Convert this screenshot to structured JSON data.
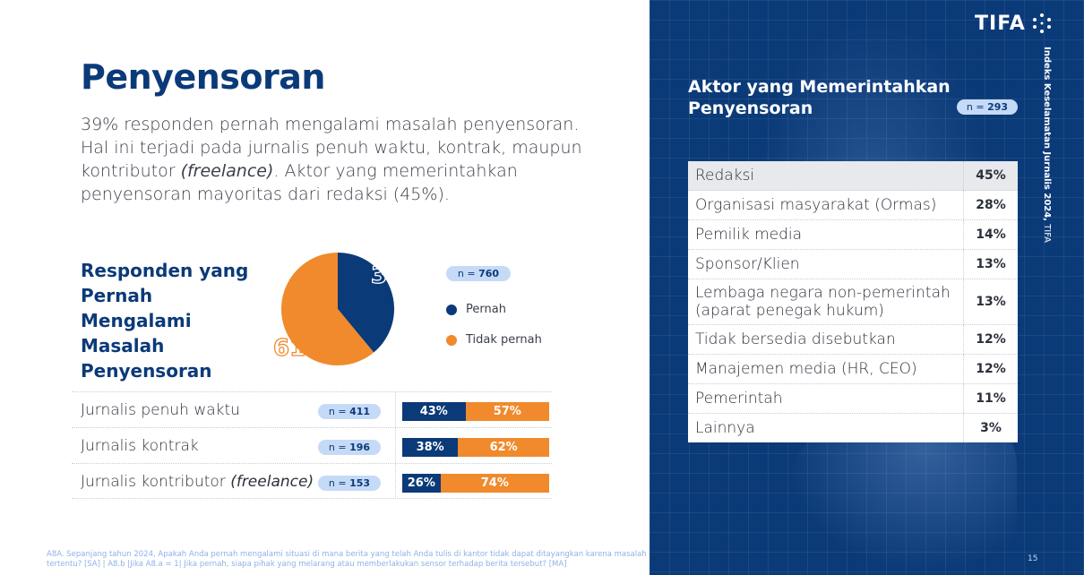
{
  "title": "Penyensoran",
  "lead": {
    "before": "39% responden pernah mengalami masalah penyensoran. Hal ini terjadi pada jurnalis penuh waktu, kontrak, maupun kontributor ",
    "italic": "(freelance)",
    "after": ". Aktor yang memerintahkan penyensoran mayoritas dari redaksi (45%)."
  },
  "pie_section": {
    "title": "Responden yang Pernah Mengalami Masalah Penyensoran",
    "n_prefix": "n = ",
    "n_value": "760"
  },
  "footnote": "A8A. Sepanjang tahun 2024, Apakah Anda pernah mengalami situasi di mana berita yang telah Anda tulis di kantor tidak dapat ditayangkan karena masalah sensor atau larangan tertentu? [SA] | A8.b |Jika A8.a = 1| Jika pernah, siapa pihak yang melarang atau memberlakukan sensor terhadap berita tersebut? [MA]",
  "brand": {
    "logo": "TIFA",
    "vertical_bold": "Indeks Keselamatan Jurnalis 2024,",
    "vertical_rest": " TIFA",
    "page_number": "15"
  },
  "actor_section": {
    "title": "Aktor yang Memerintahkan Penyensoran",
    "n_prefix": "n = ",
    "n_value": "293"
  },
  "colors": {
    "primary": "#0b3a78",
    "accent": "#f08a2c",
    "badge": "#c5daf6"
  },
  "chart_data": [
    {
      "type": "pie",
      "title": "Responden yang Pernah Mengalami Masalah Penyensoran",
      "slices": [
        {
          "name": "Pernah",
          "value": 39,
          "label": "39%",
          "color": "#0b3a78"
        },
        {
          "name": "Tidak pernah",
          "value": 61,
          "label": "61%",
          "color": "#f08a2c"
        }
      ],
      "legend_placement": "right"
    },
    {
      "type": "bar",
      "stacked": true,
      "orientation": "horizontal",
      "categories": [
        "Jurnalis penuh waktu",
        "Jurnalis kontrak",
        "Jurnalis kontributor"
      ],
      "category_italic_suffix": [
        "",
        "",
        "(freelance)"
      ],
      "n": [
        "411",
        "196",
        "153"
      ],
      "series": [
        {
          "name": "Pernah",
          "values": [
            43,
            38,
            26
          ],
          "labels": [
            "43%",
            "38%",
            "26%"
          ],
          "color": "#0b3a78"
        },
        {
          "name": "Tidak pernah",
          "values": [
            57,
            62,
            74
          ],
          "labels": [
            "57%",
            "62%",
            "74%"
          ],
          "color": "#f08a2c"
        }
      ]
    },
    {
      "type": "table",
      "title": "Aktor yang Memerintahkan Penyensoran",
      "rows": [
        {
          "name": "Redaksi",
          "value": "45%"
        },
        {
          "name": "Organisasi masyarakat (Ormas)",
          "value": "28%"
        },
        {
          "name": "Pemilik media",
          "value": "14%"
        },
        {
          "name": "Sponsor/Klien",
          "value": "13%"
        },
        {
          "name": "Lembaga negara non-pemerintah (aparat penegak hukum)",
          "value": "13%"
        },
        {
          "name": "Tidak bersedia disebutkan",
          "value": "12%"
        },
        {
          "name": "Manajemen media (HR, CEO)",
          "value": "12%"
        },
        {
          "name": "Pemerintah",
          "value": "11%"
        },
        {
          "name": "Lainnya",
          "value": "3%"
        }
      ]
    }
  ]
}
